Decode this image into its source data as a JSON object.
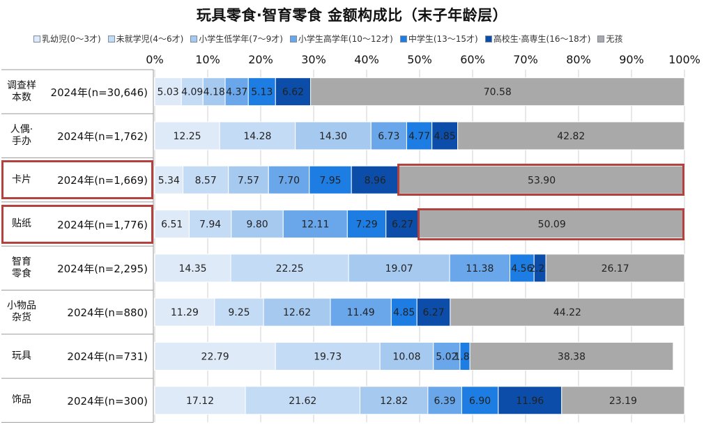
{
  "chart_data": {
    "type": "bar",
    "orientation": "horizontal",
    "stacked": true,
    "normalized": true,
    "title": "玩具零食·智育零食 金额构成比（末子年龄层）",
    "xlim": [
      0,
      100
    ],
    "x_tick_labels": [
      "0%",
      "10%",
      "20%",
      "30%",
      "40%",
      "50%",
      "60%",
      "70%",
      "80%",
      "90%",
      "100%"
    ],
    "legend_position": "top",
    "grid": true,
    "categories": [
      {
        "name": "调查样本数",
        "sample": "2024年(n=30,646)"
      },
      {
        "name": "人偶·手办",
        "sample": "2024年(n=1,762)"
      },
      {
        "name": "卡片",
        "sample": "2024年(n=1,669)"
      },
      {
        "name": "贴纸",
        "sample": "2024年(n=1,776)"
      },
      {
        "name": "智育零食",
        "sample": "2024年(n=2,295)"
      },
      {
        "name": "小物品杂货",
        "sample": "2024年(n=880)"
      },
      {
        "name": "玩具",
        "sample": "2024年(n=731)"
      },
      {
        "name": "饰品",
        "sample": "2024年(n=300)"
      }
    ],
    "series": [
      {
        "name": "乳幼児(0～3才)",
        "color": "#deeaf8",
        "values": [
          5.03,
          12.25,
          5.34,
          6.51,
          14.35,
          11.29,
          22.79,
          17.12
        ]
      },
      {
        "name": "未就学児(4～6才)",
        "color": "#c4dbf5",
        "values": [
          4.09,
          14.28,
          8.57,
          7.94,
          22.25,
          9.25,
          19.73,
          21.62
        ]
      },
      {
        "name": "小学生低学年(7～9才)",
        "color": "#a6c9f0",
        "values": [
          4.18,
          14.3,
          7.57,
          9.8,
          19.07,
          12.62,
          10.08,
          12.82
        ]
      },
      {
        "name": "小学生高学年(10～12才)",
        "color": "#69a7ea",
        "values": [
          4.37,
          6.73,
          7.7,
          12.11,
          11.38,
          11.49,
          5.02,
          6.39
        ]
      },
      {
        "name": "中学生(13～15才)",
        "color": "#1d7de3",
        "values": [
          5.13,
          4.77,
          7.95,
          7.29,
          4.56,
          4.85,
          1.87,
          6.9
        ]
      },
      {
        "name": "高校生·高専生(16～18才)",
        "color": "#0b4da8",
        "values": [
          6.62,
          4.85,
          8.96,
          6.27,
          2.23,
          6.27,
          0.0,
          11.96
        ]
      },
      {
        "name": "无孩",
        "color": "#a9a9a9",
        "values": [
          70.58,
          42.82,
          53.9,
          50.09,
          26.17,
          44.22,
          38.38,
          23.19
        ]
      }
    ],
    "value_labels": [
      [
        "5.03",
        "4.09",
        "4.18",
        "4.37",
        "5.13",
        "6.62",
        "70.58"
      ],
      [
        "12.25",
        "14.28",
        "14.30",
        "6.73",
        "4.77",
        "4.85",
        "42.82"
      ],
      [
        "5.34",
        "8.57",
        "7.57",
        "7.70",
        "7.95",
        "8.96",
        "53.90"
      ],
      [
        "6.51",
        "7.94",
        "9.80",
        "12.11",
        "7.29",
        "6.27",
        "50.09"
      ],
      [
        "14.35",
        "22.25",
        "19.07",
        "11.38",
        "4.56",
        "2.23",
        "26.17"
      ],
      [
        "11.29",
        "9.25",
        "12.62",
        "11.49",
        "4.85",
        "6.27",
        "44.22"
      ],
      [
        "22.79",
        "19.73",
        "10.08",
        "5.02",
        "1.87",
        "",
        "38.38"
      ],
      [
        "17.12",
        "21.62",
        "12.82",
        "6.39",
        "6.90",
        "11.96",
        "23.19"
      ]
    ],
    "highlighted_categories": [
      "卡片",
      "贴纸"
    ],
    "highlighted_series": "无孩",
    "highlight_color": "#b5413f"
  }
}
